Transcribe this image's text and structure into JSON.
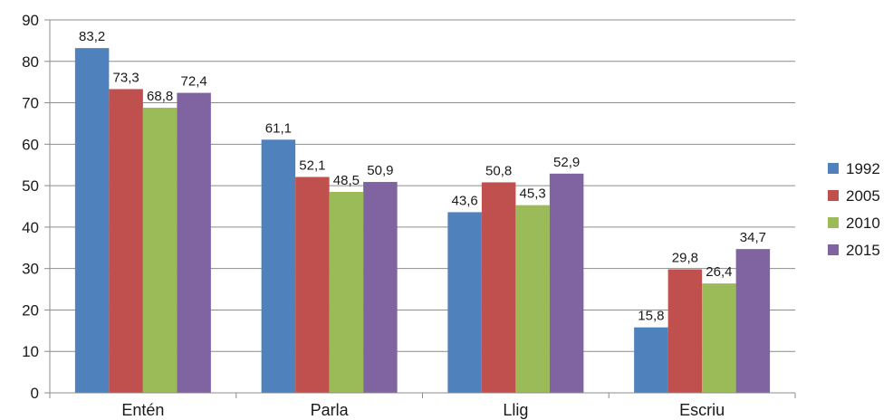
{
  "chart_data": {
    "type": "bar",
    "title": "",
    "xlabel": "",
    "ylabel": "",
    "categories": [
      "Entén",
      "Parla",
      "Llig",
      "Escriu"
    ],
    "series": [
      {
        "name": "1992",
        "color": "#4f81bd",
        "values": [
          83.2,
          61.1,
          43.6,
          15.8
        ],
        "labels": [
          "83,2",
          "61,1",
          "43,6",
          "15,8"
        ]
      },
      {
        "name": "2005",
        "color": "#c0504d",
        "values": [
          73.3,
          52.1,
          50.8,
          29.8
        ],
        "labels": [
          "73,3",
          "52,1",
          "50,8",
          "29,8"
        ]
      },
      {
        "name": "2010",
        "color": "#9bbb59",
        "values": [
          68.8,
          48.5,
          45.3,
          26.4
        ],
        "labels": [
          "68,8",
          "48,5",
          "45,3",
          "26,4"
        ]
      },
      {
        "name": "2015",
        "color": "#8064a2",
        "values": [
          72.4,
          50.9,
          52.9,
          34.7
        ],
        "labels": [
          "72,4",
          "50,9",
          "52,9",
          "34,7"
        ]
      }
    ],
    "ylim": [
      0,
      90
    ],
    "yticks": [
      0,
      10,
      20,
      30,
      40,
      50,
      60,
      70,
      80,
      90
    ],
    "grid": true,
    "legend_position": "right"
  }
}
